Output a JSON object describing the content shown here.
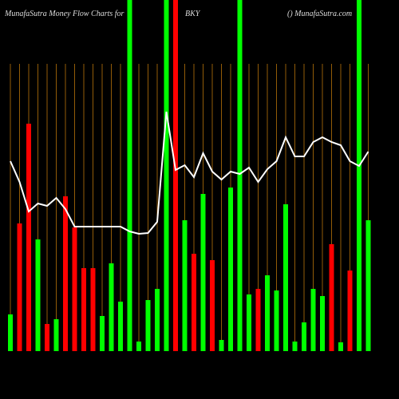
{
  "chart_data": {
    "type": "bar",
    "title_left": "MunafaSutra  Money Flow  Charts for",
    "title_center": "BKY",
    "title_right": "() MunafaSutra.com",
    "ylim": [
      0,
      440
    ],
    "categories": [
      null,
      null,
      null,
      null,
      null,
      null,
      null,
      null,
      null,
      null,
      null,
      null,
      null,
      null,
      null,
      null,
      null,
      null,
      null,
      null,
      null,
      null,
      null,
      null,
      null,
      null,
      null,
      null,
      null,
      null,
      null,
      null,
      null,
      null,
      null,
      null,
      null,
      null,
      null,
      null
    ],
    "series": [
      {
        "type": "bar",
        "colors": [
          "#00ff00",
          "#ff0000",
          "#ff0000",
          "#00ff00",
          "#ff0000",
          "#00ff00",
          "#ff0000",
          "#ff0000",
          "#ff0000",
          "#ff0000",
          "#00ff00",
          "#00ff00",
          "#00ff00",
          "#00ff00",
          "#00ff00",
          "#00ff00",
          "#00ff00",
          "#00ff00",
          "#ff0000",
          "#00ff00",
          "#ff0000",
          "#00ff00",
          "#ff0000",
          "#00ff00",
          "#00ff00",
          "#00ff00",
          "#00ff00",
          "#ff0000",
          "#00ff00",
          "#00ff00",
          "#00ff00",
          "#00ff00",
          "#00ff00",
          "#00ff00",
          "#00ff00",
          "#ff0000",
          "#00ff00",
          "#ff0000",
          "#00ff00",
          "#00ff00"
        ],
        "values": [
          46,
          160,
          285,
          140,
          34,
          40,
          194,
          155,
          104,
          104,
          44,
          110,
          62,
          440,
          12,
          64,
          78,
          440,
          440,
          164,
          122,
          197,
          114,
          14,
          205,
          440,
          71,
          78,
          95,
          76,
          184,
          12,
          36,
          78,
          69,
          134,
          11,
          101,
          440,
          164
        ]
      },
      {
        "type": "line",
        "color": "#ffffff",
        "values": [
          238,
          212,
          175,
          185,
          182,
          192,
          178,
          156,
          156,
          156,
          156,
          156,
          156,
          150,
          147,
          148,
          162,
          300,
          227,
          233,
          218,
          248,
          225,
          215,
          225,
          222,
          230,
          212,
          228,
          238,
          268,
          244,
          244,
          262,
          268,
          262,
          258,
          238,
          232,
          250
        ]
      }
    ]
  }
}
